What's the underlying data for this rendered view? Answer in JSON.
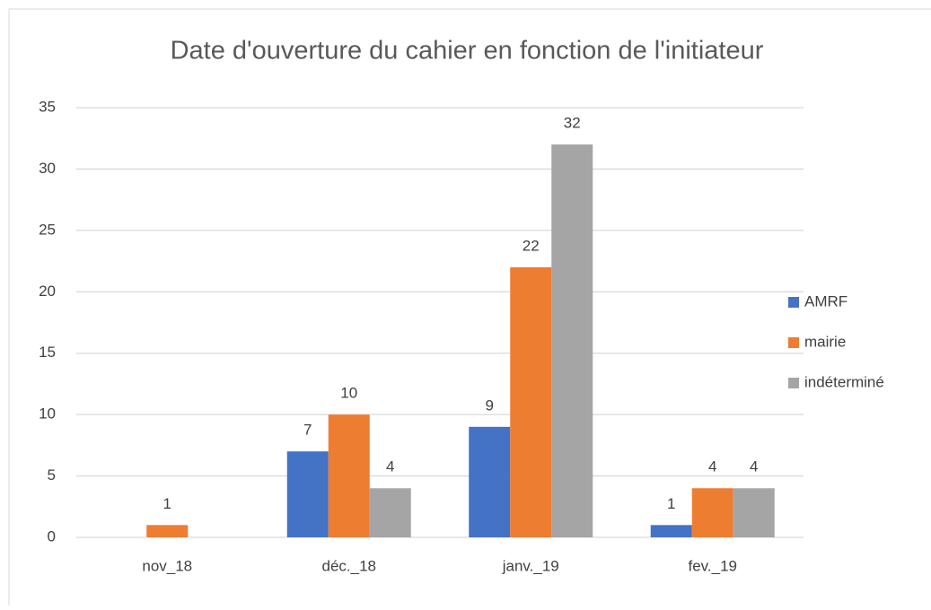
{
  "chart_data": {
    "type": "bar",
    "title": "Date d'ouverture du cahier en fonction de l'initiateur",
    "categories": [
      "nov_18",
      "déc._18",
      "janv._19",
      "fev._19"
    ],
    "series": [
      {
        "name": "AMRF",
        "color": "#4472c4",
        "values": [
          null,
          7,
          9,
          1
        ]
      },
      {
        "name": "mairie",
        "color": "#ed7d31",
        "values": [
          1,
          10,
          22,
          4
        ]
      },
      {
        "name": "indéterminé",
        "color": "#a5a5a5",
        "values": [
          null,
          4,
          32,
          4
        ]
      }
    ],
    "ylim": [
      0,
      35
    ],
    "yticks": [
      0,
      5,
      10,
      15,
      20,
      25,
      30,
      35
    ],
    "grid": true,
    "legend": "right"
  }
}
